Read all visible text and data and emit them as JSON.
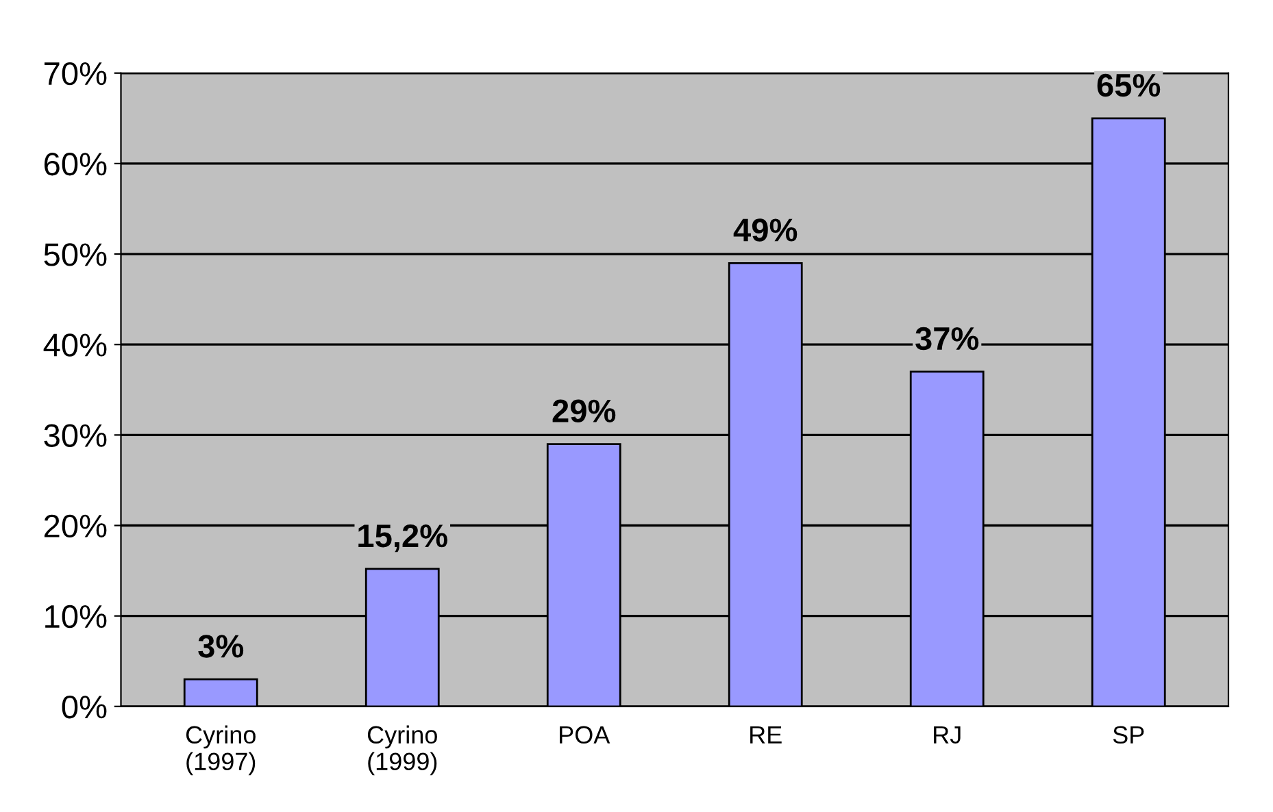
{
  "chart_data": {
    "type": "bar",
    "categories": [
      "Cyrino\n(1997)",
      "Cyrino\n(1999)",
      "POA",
      "RE",
      "RJ",
      "SP"
    ],
    "values": [
      3,
      15.2,
      29,
      49,
      37,
      65
    ],
    "value_labels": [
      "3%",
      "15,2%",
      "29%",
      "49%",
      "37%",
      "65%"
    ],
    "color": "#9999ff",
    "ylim": [
      0,
      70
    ],
    "yticks": [
      {
        "value": 0,
        "label": "0%"
      },
      {
        "value": 10,
        "label": "10%"
      },
      {
        "value": 20,
        "label": "20%"
      },
      {
        "value": 30,
        "label": "30%"
      },
      {
        "value": 40,
        "label": "40%"
      },
      {
        "value": 50,
        "label": "50%"
      },
      {
        "value": 60,
        "label": "60%"
      },
      {
        "value": 70,
        "label": "70%"
      }
    ],
    "grid": "y"
  }
}
